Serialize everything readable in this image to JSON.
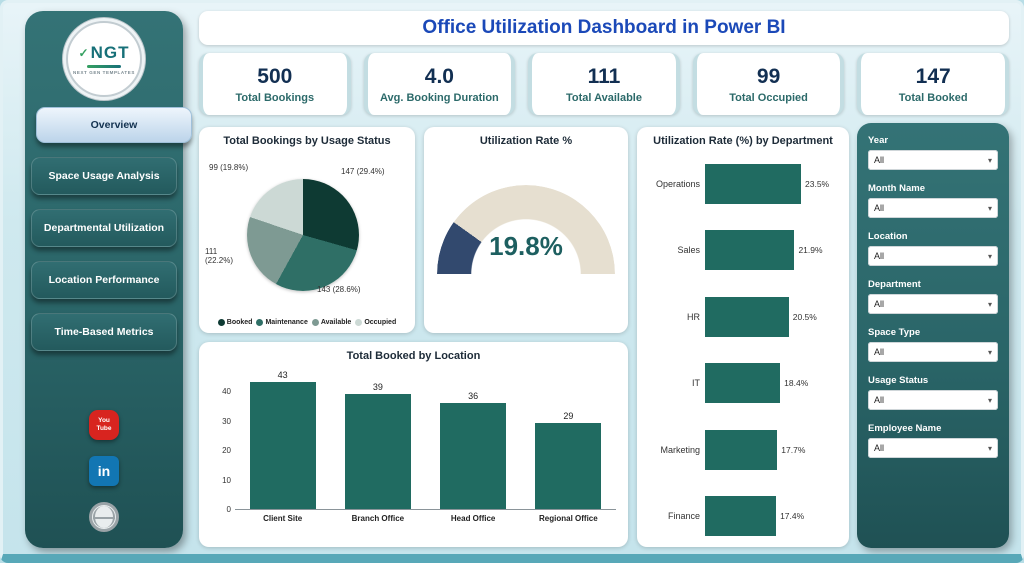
{
  "page_title": "Office Utilization Dashboard in Power BI",
  "logo": {
    "abbr": "NGT",
    "tagline": "NEXT GEN TEMPLATES"
  },
  "sidebar": {
    "items": [
      {
        "label": "Overview",
        "active": true
      },
      {
        "label": "Space Usage Analysis",
        "active": false
      },
      {
        "label": "Departmental Utilization",
        "active": false
      },
      {
        "label": "Location Performance",
        "active": false
      },
      {
        "label": "Time-Based Metrics",
        "active": false
      }
    ],
    "social": {
      "youtube_line1": "You",
      "youtube_line2": "Tube",
      "linkedin_text": "in"
    }
  },
  "kpis": [
    {
      "value": "500",
      "label": "Total Bookings"
    },
    {
      "value": "4.0",
      "label": "Avg. Booking Duration"
    },
    {
      "value": "111",
      "label": "Total Available"
    },
    {
      "value": "99",
      "label": "Total Occupied"
    },
    {
      "value": "147",
      "label": "Total Booked"
    }
  ],
  "usage_pie": {
    "title": "Total Bookings by Usage Status",
    "slices": [
      {
        "name": "Booked",
        "value": 147,
        "pct": 29.4,
        "label": "147 (29.4%)",
        "color": "#0e3a33"
      },
      {
        "name": "Maintenance",
        "value": 143,
        "pct": 28.6,
        "label": "143 (28.6%)",
        "color": "#2f6f66"
      },
      {
        "name": "Available",
        "value": 111,
        "pct": 22.2,
        "label": "111 (22.2%)",
        "color": "#7e9a93"
      },
      {
        "name": "Occupied",
        "value": 99,
        "pct": 19.8,
        "label": "99 (19.8%)",
        "color": "#ccd9d5"
      }
    ]
  },
  "gauge": {
    "title": "Utilization Rate %",
    "display": "19.8%",
    "pct": 19.8,
    "fill_color": "#32496e",
    "track_color": "#e6dfd0"
  },
  "dept_chart": {
    "title": "Utilization Rate (%) by Department",
    "max": 23.5,
    "bar_color": "#206b61",
    "rows": [
      {
        "label": "Operations",
        "value": 23.5,
        "display": "23.5%"
      },
      {
        "label": "Sales",
        "value": 21.9,
        "display": "21.9%"
      },
      {
        "label": "HR",
        "value": 20.5,
        "display": "20.5%"
      },
      {
        "label": "IT",
        "value": 18.4,
        "display": "18.4%"
      },
      {
        "label": "Marketing",
        "value": 17.7,
        "display": "17.7%"
      },
      {
        "label": "Finance",
        "value": 17.4,
        "display": "17.4%"
      }
    ]
  },
  "location_chart": {
    "title": "Total Booked by Location",
    "y_max": 45,
    "bar_color": "#206b61",
    "y_ticks": [
      "40",
      "30",
      "20",
      "10",
      "0"
    ],
    "bars": [
      {
        "label": "Client Site",
        "value": 43
      },
      {
        "label": "Branch Office",
        "value": 39
      },
      {
        "label": "Head Office",
        "value": 36
      },
      {
        "label": "Regional Office",
        "value": 29
      }
    ]
  },
  "filters": [
    {
      "label": "Year",
      "value": "All"
    },
    {
      "label": "Month Name",
      "value": "All"
    },
    {
      "label": "Location",
      "value": "All"
    },
    {
      "label": "Department",
      "value": "All"
    },
    {
      "label": "Space Type",
      "value": "All"
    },
    {
      "label": "Usage Status",
      "value": "All"
    },
    {
      "label": "Employee Name",
      "value": "All"
    }
  ],
  "colors": {
    "panel_teal": "#2d6b6e",
    "header_blue": "#1b49b8",
    "kpi_value_navy": "#122f52",
    "kpi_label_teal": "#2c6a6a",
    "bar_teal": "#206b61",
    "gauge_fill": "#32496e",
    "gauge_track": "#e6dfd0",
    "active_nav_bg": "#cfe2f2",
    "background": "#cfe9ef"
  },
  "chart_data": [
    {
      "type": "pie",
      "title": "Total Bookings by Usage Status",
      "labels": [
        "Booked",
        "Maintenance",
        "Available",
        "Occupied"
      ],
      "values": [
        147,
        143,
        111,
        99
      ],
      "percents": [
        29.4,
        28.6,
        22.2,
        19.8
      ],
      "legend_position": "bottom"
    },
    {
      "type": "gauge",
      "title": "Utilization Rate %",
      "value": 19.8,
      "min": 0,
      "max": 100,
      "unit": "%"
    },
    {
      "type": "bar",
      "orientation": "horizontal",
      "title": "Utilization Rate (%) by Department",
      "categories": [
        "Operations",
        "Sales",
        "HR",
        "IT",
        "Marketing",
        "Finance"
      ],
      "values": [
        23.5,
        21.9,
        20.5,
        18.4,
        17.7,
        17.4
      ],
      "unit": "%"
    },
    {
      "type": "bar",
      "orientation": "vertical",
      "title": "Total Booked by Location",
      "categories": [
        "Client Site",
        "Branch Office",
        "Head Office",
        "Regional Office"
      ],
      "values": [
        43,
        39,
        36,
        29
      ],
      "ylim": [
        0,
        40
      ]
    }
  ]
}
